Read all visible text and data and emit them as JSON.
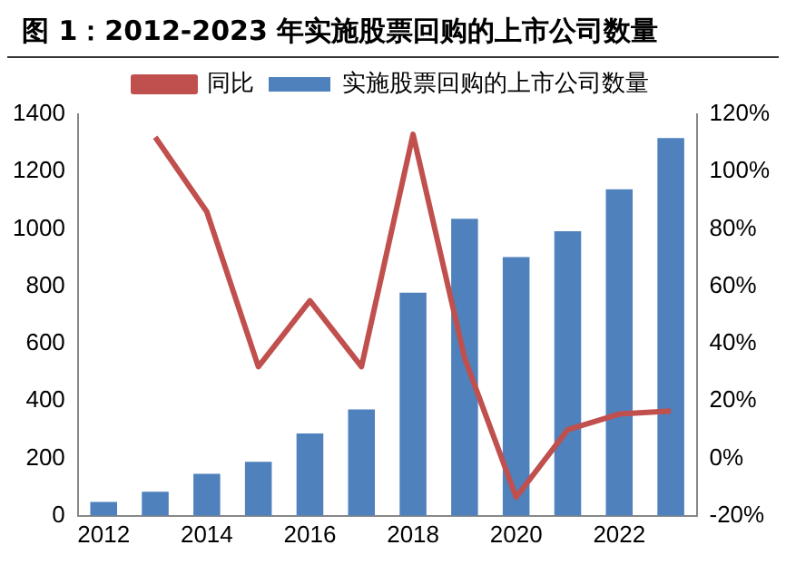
{
  "chart_data": {
    "type": "bar",
    "title": "图 1：2012-2023 年实施股票回购的上市公司数量",
    "categories": [
      "2012",
      null,
      "2014",
      null,
      "2016",
      null,
      "2018",
      null,
      "2020",
      null,
      "2022",
      null
    ],
    "series": [
      {
        "name": "实施股票回购的上市公司数量",
        "color": "#4f81bd",
        "values": [
          48,
          84,
          146,
          188,
          287,
          371,
          778,
          1036,
          902,
          992,
          1138,
          1317
        ]
      },
      {
        "name": "同比",
        "type": "line",
        "axis": "y2",
        "color": "#c0504d",
        "values": [
          null,
          112,
          86,
          32,
          55,
          32,
          113,
          35,
          -13.5,
          10,
          15.5,
          16.5
        ]
      }
    ],
    "ylim": [
      0,
      1400
    ],
    "yticks": [
      0,
      200,
      400,
      600,
      800,
      1000,
      1200,
      1400
    ],
    "y2lim": [
      -20,
      120
    ],
    "y2ticks": [
      {
        "value": -20,
        "label": "-20%"
      },
      {
        "value": 0,
        "label": "0%"
      },
      {
        "value": 20,
        "label": "20%"
      },
      {
        "value": 40,
        "label": "40%"
      },
      {
        "value": 60,
        "label": "60%"
      },
      {
        "value": 80,
        "label": "80%"
      },
      {
        "value": 100,
        "label": "100%"
      },
      {
        "value": 120,
        "label": "120%"
      }
    ],
    "grid": false,
    "legend": "top",
    "marker": "none"
  }
}
